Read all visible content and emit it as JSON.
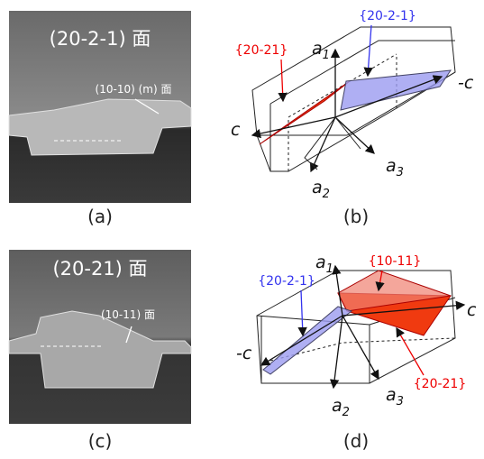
{
  "panel_a": {
    "title": "(20-2-1) 面",
    "annotation": "(10-10) (m) 面",
    "caption": "(a)"
  },
  "panel_b": {
    "plane_red": "{20-21}",
    "plane_blue": "{20-2-1}",
    "axis_a1": {
      "base": "a",
      "sub": "1"
    },
    "axis_a2": {
      "base": "a",
      "sub": "2"
    },
    "axis_a3": {
      "base": "a",
      "sub": "3"
    },
    "axis_c": "c",
    "axis_minus_c": "-c",
    "caption": "(b)"
  },
  "panel_c": {
    "title": "(20-21) 面",
    "annotation": "(10-11) 面",
    "caption": "(c)"
  },
  "panel_d": {
    "plane_blue": "{20-2-1}",
    "plane_red_top": "{10-11}",
    "plane_red": "{20-21}",
    "axis_a1": {
      "base": "a",
      "sub": "1"
    },
    "axis_a2": {
      "base": "a",
      "sub": "2"
    },
    "axis_a3": {
      "base": "a",
      "sub": "3"
    },
    "axis_c": "c",
    "axis_minus_c": "-c",
    "caption": "(d)"
  }
}
